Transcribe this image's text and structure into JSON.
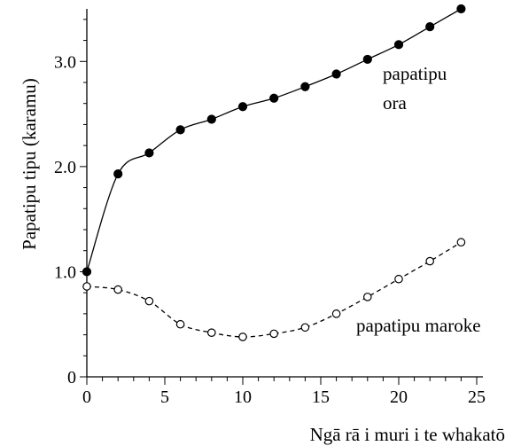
{
  "chart_data": {
    "type": "line",
    "xlabel": "Ngā rā i muri i te whakatō",
    "ylabel": "Papatipu tipu (karamu)",
    "xlim": [
      0,
      25
    ],
    "ylim": [
      0,
      3.5
    ],
    "x_ticks": [
      0,
      5,
      10,
      15,
      20,
      25
    ],
    "x_tick_labels": [
      "0",
      "5",
      "10",
      "15",
      "20",
      "25"
    ],
    "x_minor_step": 1,
    "y_ticks": [
      0,
      1,
      2,
      3
    ],
    "y_tick_labels": [
      "0",
      "1.0",
      "2.0",
      "3.0"
    ],
    "y_minor_step": 0.2,
    "grid": false,
    "legend": "none",
    "series": [
      {
        "name": "papatipu ora",
        "marker": "filled-circle",
        "line_style": "solid",
        "color": "#000000",
        "x": [
          0,
          2,
          4,
          6,
          8,
          10,
          12,
          14,
          16,
          18,
          20,
          22,
          24
        ],
        "values": [
          1.0,
          1.93,
          2.13,
          2.35,
          2.45,
          2.57,
          2.65,
          2.76,
          2.88,
          3.02,
          3.16,
          3.33,
          3.5
        ]
      },
      {
        "name": "papatipu maroke",
        "marker": "open-circle",
        "line_style": "dashed",
        "color": "#000000",
        "x": [
          0,
          2,
          4,
          6,
          8,
          10,
          12,
          14,
          16,
          18,
          20,
          22,
          24
        ],
        "values": [
          0.86,
          0.83,
          0.72,
          0.5,
          0.42,
          0.38,
          0.41,
          0.47,
          0.6,
          0.76,
          0.93,
          1.1,
          1.28
        ]
      }
    ],
    "annotations": {
      "ora_line1": "papatipu",
      "ora_line2": "ora",
      "maroke": "papatipu maroke"
    }
  }
}
